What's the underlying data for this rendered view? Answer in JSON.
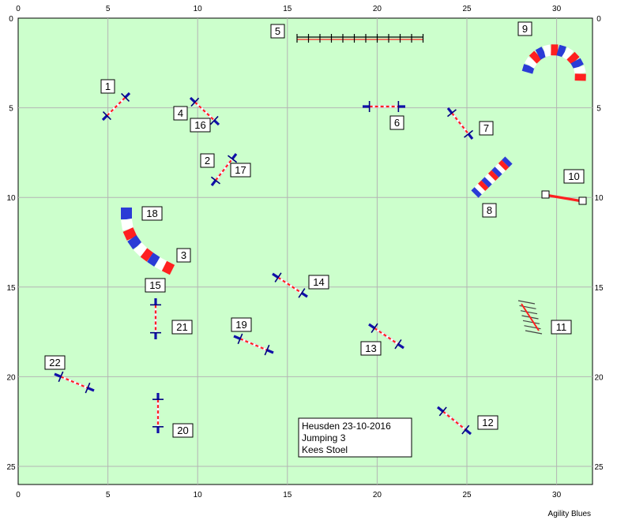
{
  "course": {
    "grid_x_max": 32,
    "grid_y_max": 26,
    "x_ticks": [
      "0",
      "5",
      "10",
      "15",
      "20",
      "25",
      "30"
    ],
    "y_ticks": [
      "0",
      "5",
      "10",
      "15",
      "20",
      "25"
    ],
    "field_color": "#ccffcc",
    "grid_color": "#b4b4b4",
    "pole_stripe_color": "#ff2020",
    "wing_color": "#1010a8",
    "tunnel_colors": [
      "#2b3bd6",
      "#ffffff",
      "#ff2020"
    ]
  },
  "info_box": {
    "line1": "Heusden 23-10-2016",
    "line2": "Jumping 3",
    "line3": "Kees Stoel"
  },
  "obstacle_labels": [
    {
      "text": "1",
      "type": "jump"
    },
    {
      "text": "2",
      "type": "jump"
    },
    {
      "text": "3",
      "type": "tunnel"
    },
    {
      "text": "4",
      "type": "jump"
    },
    {
      "text": "5",
      "type": "long-jump"
    },
    {
      "text": "6",
      "type": "jump"
    },
    {
      "text": "7",
      "type": "jump"
    },
    {
      "text": "8",
      "type": "tunnel"
    },
    {
      "text": "9",
      "type": "tunnel"
    },
    {
      "text": "10",
      "type": "tyre"
    },
    {
      "text": "11",
      "type": "weave"
    },
    {
      "text": "12",
      "type": "jump"
    },
    {
      "text": "13",
      "type": "jump"
    },
    {
      "text": "14",
      "type": "jump"
    },
    {
      "text": "15",
      "type": "jump"
    },
    {
      "text": "16",
      "type": "jump"
    },
    {
      "text": "17",
      "type": "jump"
    },
    {
      "text": "18",
      "type": "tunnel"
    },
    {
      "text": "19",
      "type": "jump"
    },
    {
      "text": "20",
      "type": "jump"
    },
    {
      "text": "21",
      "type": "jump"
    },
    {
      "text": "22",
      "type": "jump"
    }
  ],
  "footer": {
    "brand": "Agility Blues"
  }
}
